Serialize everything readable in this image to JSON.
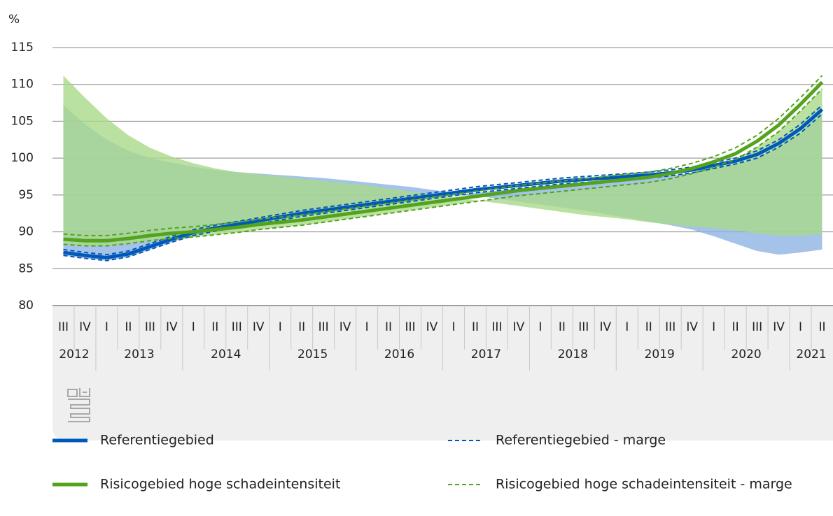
{
  "chart_data": {
    "type": "line",
    "y_label": "%",
    "ylim": [
      80,
      115
    ],
    "yticks": [
      80,
      85,
      90,
      95,
      100,
      105,
      110,
      115
    ],
    "grid": true,
    "categories": [
      "III",
      "IV",
      "I",
      "II",
      "III",
      "IV",
      "I",
      "II",
      "III",
      "IV",
      "I",
      "II",
      "III",
      "IV",
      "I",
      "II",
      "III",
      "IV",
      "I",
      "II",
      "III",
      "IV",
      "I",
      "II",
      "III",
      "IV",
      "I",
      "II",
      "III",
      "IV",
      "I",
      "II",
      "III",
      "IV",
      "I",
      "II"
    ],
    "years": [
      "2012",
      "2013",
      "2014",
      "2015",
      "2016",
      "2017",
      "2018",
      "2019",
      "2020",
      "2021"
    ],
    "series": [
      {
        "name": "Referentiegebied",
        "color": "#0058b8",
        "values": [
          87.2,
          86.8,
          86.5,
          87.0,
          88.0,
          89.0,
          89.9,
          90.5,
          91.0,
          91.5,
          92.0,
          92.5,
          92.9,
          93.3,
          93.7,
          94.1,
          94.5,
          94.9,
          95.3,
          95.7,
          96.0,
          96.3,
          96.6,
          96.9,
          97.1,
          97.3,
          97.5,
          97.7,
          98.0,
          98.4,
          99.0,
          99.6,
          100.5,
          102.0,
          104.0,
          106.6
        ]
      },
      {
        "name": "Referentiegebied - marge",
        "color": "#0058b8",
        "dashed": true,
        "band_color": "#8fb3e2",
        "lower": [
          86.8,
          86.4,
          86.1,
          86.6,
          87.6,
          88.6,
          89.5,
          90.1,
          90.6,
          91.1,
          91.6,
          92.1,
          92.5,
          92.9,
          93.3,
          93.7,
          94.1,
          94.5,
          94.9,
          95.3,
          95.6,
          95.9,
          96.2,
          96.5,
          96.7,
          96.9,
          97.1,
          97.3,
          97.6,
          98.0,
          98.6,
          99.2,
          100.0,
          101.5,
          103.4,
          106.0
        ],
        "upper": [
          87.6,
          87.2,
          86.9,
          87.4,
          88.4,
          89.4,
          90.3,
          90.9,
          91.4,
          91.9,
          92.4,
          92.9,
          93.3,
          93.7,
          94.1,
          94.5,
          94.9,
          95.3,
          95.7,
          96.1,
          96.4,
          96.7,
          97.0,
          97.3,
          97.5,
          97.7,
          97.9,
          98.1,
          98.4,
          98.8,
          99.4,
          100.0,
          101.0,
          102.5,
          104.6,
          107.2
        ]
      },
      {
        "name": "Risicogebied hoge schadeintensiteit",
        "color": "#53a31d",
        "values": [
          89.0,
          88.8,
          88.8,
          89.1,
          89.5,
          89.8,
          90.0,
          90.3,
          90.6,
          91.0,
          91.3,
          91.6,
          92.0,
          92.4,
          92.8,
          93.2,
          93.6,
          94.0,
          94.4,
          94.8,
          95.2,
          95.6,
          95.9,
          96.2,
          96.5,
          96.8,
          97.1,
          97.4,
          97.9,
          98.6,
          99.5,
          100.6,
          102.3,
          104.5,
          107.3,
          110.3
        ]
      },
      {
        "name": "Risicogebied hoge schadeintensiteit - marge",
        "color": "#53a31d",
        "dashed": true,
        "band_color": "#a9d98a",
        "lower": [
          88.3,
          88.1,
          88.1,
          88.4,
          88.8,
          89.1,
          89.3,
          89.6,
          89.9,
          90.3,
          90.6,
          90.9,
          91.3,
          91.7,
          92.1,
          92.5,
          92.9,
          93.3,
          93.7,
          94.1,
          94.5,
          94.9,
          95.2,
          95.5,
          95.8,
          96.1,
          96.4,
          96.7,
          97.2,
          97.9,
          98.8,
          99.8,
          101.5,
          103.6,
          106.4,
          109.4
        ],
        "upper": [
          89.7,
          89.5,
          89.5,
          89.8,
          90.2,
          90.5,
          90.7,
          91.0,
          91.3,
          91.7,
          92.0,
          92.3,
          92.7,
          93.1,
          93.5,
          93.9,
          94.3,
          94.7,
          95.1,
          95.5,
          95.9,
          96.3,
          96.6,
          96.9,
          97.2,
          97.5,
          97.8,
          98.1,
          98.6,
          99.3,
          100.2,
          101.4,
          103.1,
          105.4,
          108.2,
          111.2
        ]
      }
    ]
  }
}
